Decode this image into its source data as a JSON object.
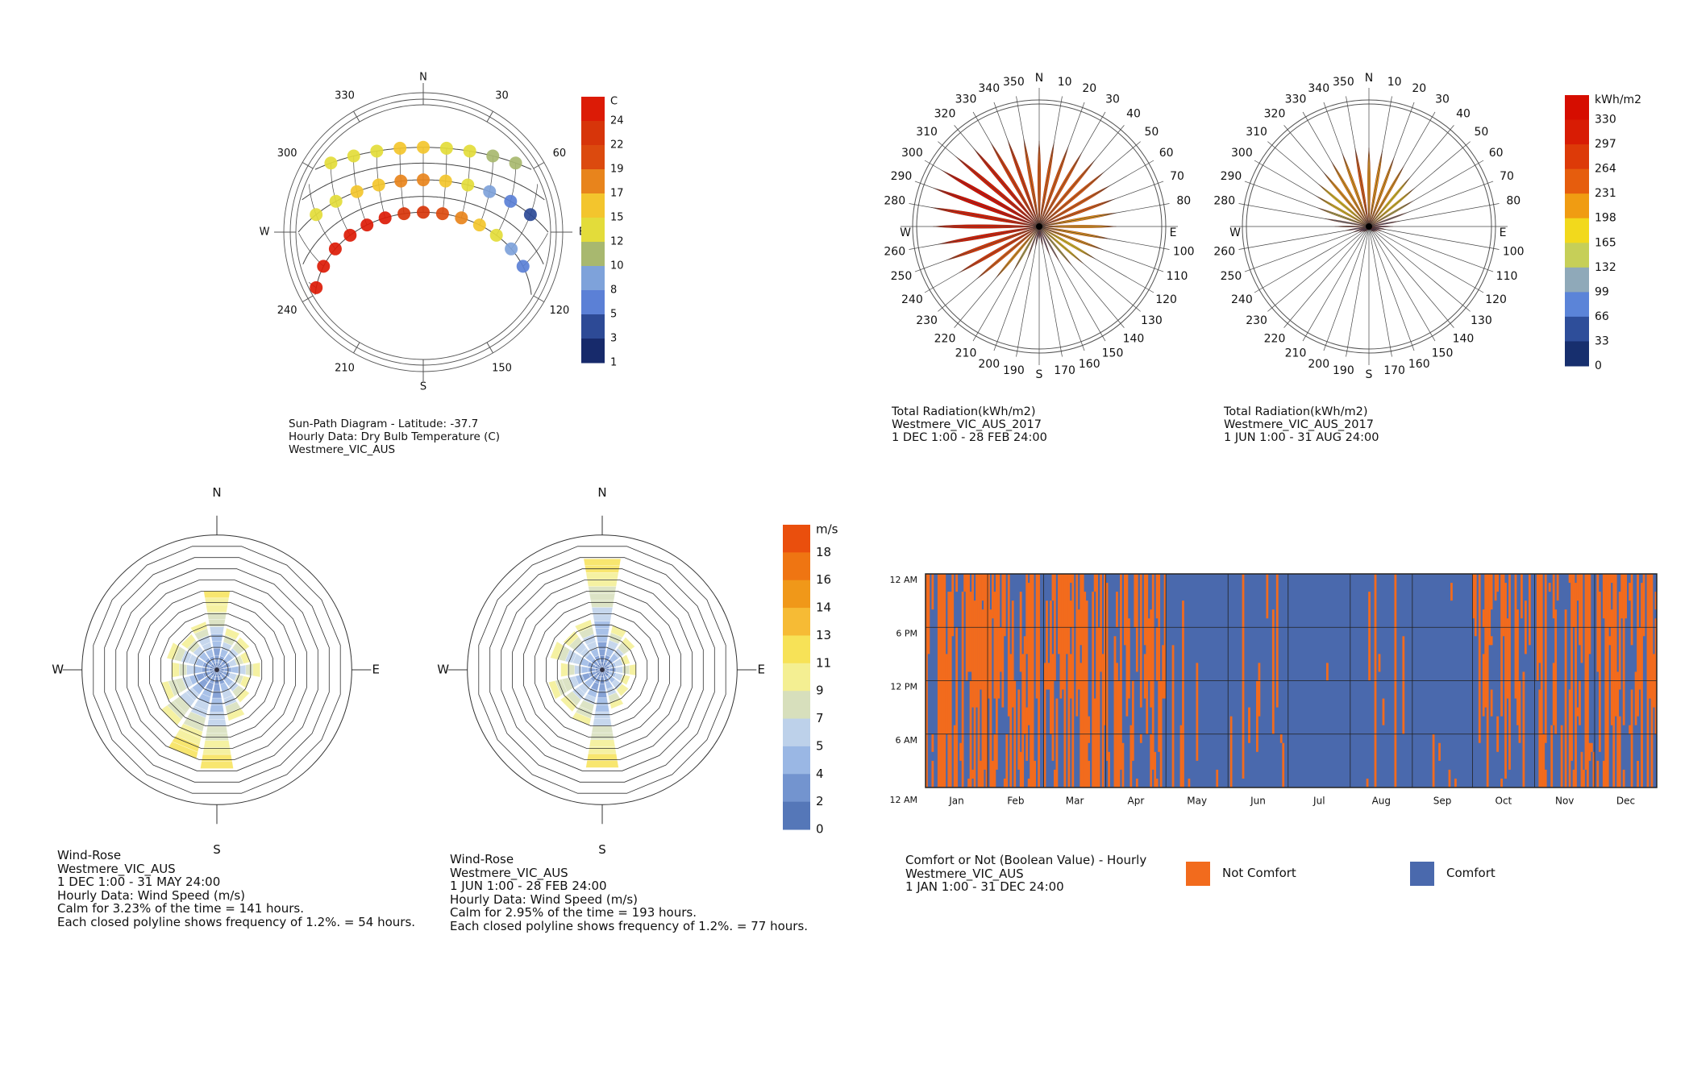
{
  "chart_data": [
    {
      "type": "scatter",
      "name": "sun-path",
      "title": "Sun-Path Diagram - Latitude: -37.7",
      "caption": [
        "Sun-Path Diagram - Latitude: -37.7",
        "Hourly Data: Dry Bulb Temperature (C)",
        "Westmere_VIC_AUS"
      ],
      "latitude": -37.7,
      "compass": {
        "N": "N",
        "E": "E",
        "S": "S",
        "W": "W"
      },
      "angle_labels": [
        "30",
        "60",
        "120",
        "150",
        "210",
        "240",
        "300",
        "330"
      ],
      "legend": {
        "unit": "C",
        "ticks": [
          "24",
          "22",
          "19",
          "17",
          "15",
          "12",
          "10",
          "8",
          "5",
          "3",
          "1"
        ],
        "colors": [
          "#dc1b06",
          "#d7350a",
          "#dc4a0e",
          "#e8841c",
          "#f3c52d",
          "#e3dc3a",
          "#a8b86f",
          "#7ea2da",
          "#5b80d6",
          "#2d4a96",
          "#172a6b"
        ]
      },
      "paths": [
        {
          "declination": -23.4,
          "hours": [
            6,
            7,
            8,
            9,
            10,
            11,
            12,
            13,
            14,
            15,
            16,
            17,
            18,
            19
          ],
          "temps": [
            7,
            9,
            13,
            16,
            18,
            20,
            22,
            23,
            24,
            24,
            25,
            25,
            25,
            25
          ]
        },
        {
          "declination": 0,
          "hours": [
            7,
            8,
            9,
            10,
            11,
            12,
            13,
            14,
            15,
            16,
            17
          ],
          "temps": [
            3,
            6,
            9,
            13,
            16,
            17,
            17,
            16,
            15,
            14,
            14
          ]
        },
        {
          "declination": 23.4,
          "hours": [
            8,
            9,
            10,
            11,
            12,
            13,
            14,
            15,
            16
          ],
          "temps": [
            10,
            11,
            12,
            14,
            15,
            15,
            14,
            14,
            13
          ]
        }
      ]
    },
    {
      "type": "radial-bar",
      "name": "radiation-summer",
      "caption": [
        "Total Radiation(kWh/m2)",
        "Westmere_VIC_AUS_2017",
        "1 DEC 1:00 - 28 FEB 24:00"
      ],
      "directions": [
        0,
        10,
        20,
        30,
        40,
        50,
        60,
        70,
        80,
        90,
        100,
        110,
        120,
        130,
        140,
        150,
        160,
        170,
        180,
        190,
        200,
        210,
        220,
        230,
        240,
        250,
        260,
        270,
        280,
        290,
        300,
        310,
        320,
        330,
        340,
        350
      ],
      "values": [
        250,
        250,
        250,
        250,
        255,
        250,
        240,
        235,
        230,
        225,
        210,
        200,
        190,
        170,
        150,
        120,
        90,
        60,
        40,
        60,
        100,
        150,
        200,
        240,
        270,
        290,
        300,
        310,
        320,
        330,
        330,
        320,
        300,
        285,
        270,
        260
      ]
    },
    {
      "type": "radial-bar",
      "name": "radiation-winter",
      "caption": [
        "Total Radiation(kWh/m2)",
        "Westmere_VIC_AUS_2017",
        "1 JUN 1:00 - 31 AUG 24:00"
      ],
      "directions": [
        0,
        10,
        20,
        30,
        40,
        50,
        60,
        70,
        80,
        90,
        100,
        110,
        120,
        130,
        140,
        150,
        160,
        170,
        180,
        190,
        200,
        210,
        220,
        230,
        240,
        250,
        260,
        270,
        280,
        290,
        300,
        310,
        320,
        330,
        340,
        350
      ],
      "values": [
        230,
        225,
        215,
        205,
        190,
        175,
        150,
        120,
        90,
        70,
        50,
        40,
        30,
        25,
        20,
        15,
        10,
        8,
        5,
        8,
        10,
        15,
        20,
        25,
        35,
        50,
        70,
        100,
        130,
        160,
        180,
        195,
        210,
        220,
        228,
        232
      ]
    },
    {
      "type": "legend",
      "name": "radiation-legend",
      "unit": "kWh/m2",
      "ticks": [
        "330",
        "297",
        "264",
        "231",
        "198",
        "165",
        "132",
        "99",
        "66",
        "33",
        "0"
      ],
      "colors": [
        "#d60d00",
        "#d81c04",
        "#dd3a08",
        "#e65d0d",
        "#f09c12",
        "#f2d91c",
        "#c6cf58",
        "#8fa9b9",
        "#5b84d8",
        "#2e4e9a",
        "#172f6e"
      ]
    },
    {
      "type": "wind-rose",
      "name": "wind-rose-1",
      "caption": [
        "Wind-Rose",
        "Westmere_VIC_AUS",
        "1 DEC 1:00 - 31 MAY 24:00",
        "Hourly Data: Wind Speed (m/s)",
        "Calm for 3.23% of the time = 141 hours.",
        "Each closed polyline shows frequency of 1.2%. = 54 hours."
      ],
      "compass": {
        "N": "N",
        "E": "E",
        "S": "S",
        "W": "W"
      },
      "ring_step_percent": 1.2,
      "rings": 11,
      "frequency_percent": [
        8.4,
        4.5,
        4.2,
        3.6,
        4.6,
        3.6,
        4.2,
        5.5,
        10.5,
        9.6,
        7.2,
        6.0,
        4.8,
        5.4,
        4.6,
        5.2
      ]
    },
    {
      "type": "wind-rose",
      "name": "wind-rose-2",
      "caption": [
        "Wind-Rose",
        "Westmere_VIC_AUS",
        "1 JUN 1:00 - 28 FEB 24:00",
        "Hourly Data: Wind Speed (m/s)",
        "Calm for 2.95% of the time = 193 hours.",
        "Each closed polyline shows frequency of 1.2%. = 77 hours."
      ],
      "compass": {
        "N": "N",
        "E": "E",
        "S": "S",
        "W": "W"
      },
      "ring_step_percent": 1.2,
      "rings": 11,
      "frequency_percent": [
        11.8,
        4.8,
        4.2,
        3.0,
        3.6,
        3.0,
        3.4,
        4.2,
        10.4,
        6.0,
        5.4,
        5.8,
        4.4,
        5.6,
        5.0,
        5.4
      ]
    },
    {
      "type": "legend",
      "name": "wind-legend",
      "unit": "m/s",
      "ticks": [
        "18",
        "16",
        "14",
        "13",
        "11",
        "9",
        "7",
        "5",
        "4",
        "2",
        "0"
      ],
      "colors": [
        "#ea4f0d",
        "#ef7512",
        "#f09819",
        "#f6bb35",
        "#f7e257",
        "#f4ef92",
        "#d7dfbc",
        "#bdd1ea",
        "#9ab7e4",
        "#7394cf",
        "#5577b8"
      ]
    },
    {
      "type": "heatmap",
      "name": "comfort-heatmap",
      "caption": [
        "Comfort or Not (Boolean Value) - Hourly",
        "Westmere_VIC_AUS",
        "1 JAN 1:00 - 31 DEC 24:00"
      ],
      "y_ticks": [
        "12 AM",
        "6 PM",
        "12 PM",
        "6 AM",
        "12 AM"
      ],
      "months": [
        "Jan",
        "Feb",
        "Mar",
        "Apr",
        "May",
        "Jun",
        "Jul",
        "Aug",
        "Sep",
        "Oct",
        "Nov",
        "Dec"
      ],
      "not_comfort_fraction_by_month": [
        0.6,
        0.55,
        0.55,
        0.4,
        0.07,
        0.08,
        0.01,
        0.05,
        0.04,
        0.35,
        0.4,
        0.55
      ],
      "legend": [
        {
          "label": "Not Comfort",
          "color": "#f26b1d"
        },
        {
          "label": "Comfort",
          "color": "#4a69ad"
        }
      ]
    }
  ]
}
